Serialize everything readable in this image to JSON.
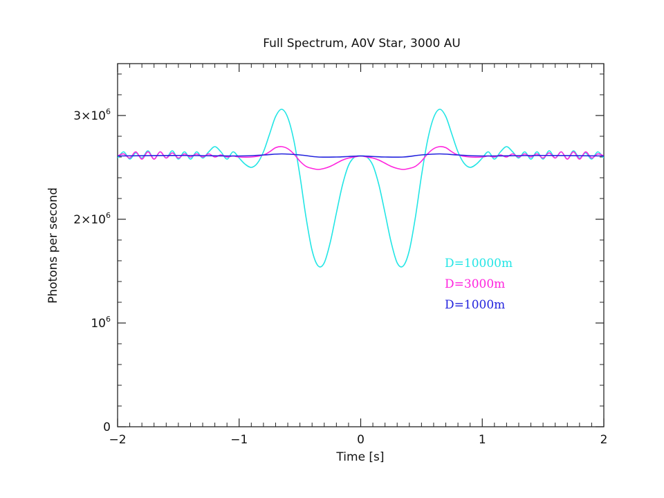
{
  "chart_data": {
    "type": "line",
    "title": "Full Spectrum, A0V Star, 3000 AU",
    "xlabel": "Time [s]",
    "ylabel": "Photons per second",
    "xlim": [
      -2,
      2
    ],
    "ylim": [
      0,
      3500000
    ],
    "x_ticks": [
      {
        "value": -2,
        "label": "−2"
      },
      {
        "value": -1,
        "label": "−1"
      },
      {
        "value": 0,
        "label": "0"
      },
      {
        "value": 1,
        "label": "1"
      },
      {
        "value": 2,
        "label": "2"
      }
    ],
    "y_ticks": [
      {
        "value": 0,
        "label": "0",
        "mantissa": "",
        "exp": ""
      },
      {
        "value": 1000000,
        "label": "10^6",
        "mantissa": "10",
        "exp": "6"
      },
      {
        "value": 2000000,
        "label": "2×10^6",
        "mantissa": "2×10",
        "exp": "6"
      },
      {
        "value": 3000000,
        "label": "3×10^6",
        "mantissa": "3×10",
        "exp": "6"
      }
    ],
    "grid": false,
    "legend_placement": "center-right",
    "series": [
      {
        "name": "D=10000m",
        "color": "#22e5e5",
        "points": [
          [
            -2.0,
            2590000
          ],
          [
            -1.95,
            2650000
          ],
          [
            -1.9,
            2580000
          ],
          [
            -1.85,
            2640000
          ],
          [
            -1.8,
            2590000
          ],
          [
            -1.75,
            2660000
          ],
          [
            -1.7,
            2580000
          ],
          [
            -1.65,
            2650000
          ],
          [
            -1.6,
            2590000
          ],
          [
            -1.55,
            2660000
          ],
          [
            -1.5,
            2580000
          ],
          [
            -1.45,
            2650000
          ],
          [
            -1.4,
            2580000
          ],
          [
            -1.35,
            2650000
          ],
          [
            -1.3,
            2590000
          ],
          [
            -1.25,
            2650000
          ],
          [
            -1.2,
            2700000
          ],
          [
            -1.15,
            2650000
          ],
          [
            -1.1,
            2580000
          ],
          [
            -1.05,
            2650000
          ],
          [
            -1.0,
            2590000
          ],
          [
            -0.95,
            2530000
          ],
          [
            -0.9,
            2500000
          ],
          [
            -0.85,
            2540000
          ],
          [
            -0.8,
            2650000
          ],
          [
            -0.75,
            2820000
          ],
          [
            -0.7,
            2990000
          ],
          [
            -0.65,
            3060000
          ],
          [
            -0.6,
            2980000
          ],
          [
            -0.55,
            2760000
          ],
          [
            -0.5,
            2420000
          ],
          [
            -0.45,
            2020000
          ],
          [
            -0.4,
            1700000
          ],
          [
            -0.35,
            1550000
          ],
          [
            -0.3,
            1580000
          ],
          [
            -0.25,
            1780000
          ],
          [
            -0.2,
            2060000
          ],
          [
            -0.15,
            2330000
          ],
          [
            -0.1,
            2520000
          ],
          [
            -0.05,
            2600000
          ],
          [
            0.0,
            2610000
          ],
          [
            0.05,
            2600000
          ],
          [
            0.1,
            2520000
          ],
          [
            0.15,
            2330000
          ],
          [
            0.2,
            2060000
          ],
          [
            0.25,
            1780000
          ],
          [
            0.3,
            1580000
          ],
          [
            0.35,
            1550000
          ],
          [
            0.4,
            1700000
          ],
          [
            0.45,
            2020000
          ],
          [
            0.5,
            2420000
          ],
          [
            0.55,
            2760000
          ],
          [
            0.6,
            2980000
          ],
          [
            0.65,
            3060000
          ],
          [
            0.7,
            2990000
          ],
          [
            0.75,
            2820000
          ],
          [
            0.8,
            2650000
          ],
          [
            0.85,
            2540000
          ],
          [
            0.9,
            2500000
          ],
          [
            0.95,
            2530000
          ],
          [
            1.0,
            2590000
          ],
          [
            1.05,
            2650000
          ],
          [
            1.1,
            2580000
          ],
          [
            1.15,
            2650000
          ],
          [
            1.2,
            2700000
          ],
          [
            1.25,
            2650000
          ],
          [
            1.3,
            2590000
          ],
          [
            1.35,
            2650000
          ],
          [
            1.4,
            2580000
          ],
          [
            1.45,
            2650000
          ],
          [
            1.5,
            2580000
          ],
          [
            1.55,
            2660000
          ],
          [
            1.6,
            2590000
          ],
          [
            1.65,
            2650000
          ],
          [
            1.7,
            2580000
          ],
          [
            1.75,
            2660000
          ],
          [
            1.8,
            2590000
          ],
          [
            1.85,
            2640000
          ],
          [
            1.9,
            2580000
          ],
          [
            1.95,
            2650000
          ],
          [
            2.0,
            2590000
          ]
        ]
      },
      {
        "name": "D=3000m",
        "color": "#ff22dd",
        "points": [
          [
            -2.0,
            2610000
          ],
          [
            -1.95,
            2630000
          ],
          [
            -1.9,
            2590000
          ],
          [
            -1.85,
            2650000
          ],
          [
            -1.8,
            2580000
          ],
          [
            -1.75,
            2650000
          ],
          [
            -1.7,
            2580000
          ],
          [
            -1.65,
            2650000
          ],
          [
            -1.6,
            2590000
          ],
          [
            -1.55,
            2640000
          ],
          [
            -1.5,
            2590000
          ],
          [
            -1.45,
            2630000
          ],
          [
            -1.4,
            2600000
          ],
          [
            -1.35,
            2630000
          ],
          [
            -1.3,
            2600000
          ],
          [
            -1.25,
            2630000
          ],
          [
            -1.2,
            2600000
          ],
          [
            -1.15,
            2620000
          ],
          [
            -1.1,
            2600000
          ],
          [
            -1.05,
            2610000
          ],
          [
            -1.0,
            2600000
          ],
          [
            -0.9,
            2600000
          ],
          [
            -0.8,
            2620000
          ],
          [
            -0.75,
            2650000
          ],
          [
            -0.7,
            2690000
          ],
          [
            -0.65,
            2700000
          ],
          [
            -0.6,
            2680000
          ],
          [
            -0.55,
            2630000
          ],
          [
            -0.5,
            2560000
          ],
          [
            -0.45,
            2510000
          ],
          [
            -0.4,
            2490000
          ],
          [
            -0.35,
            2480000
          ],
          [
            -0.3,
            2490000
          ],
          [
            -0.25,
            2510000
          ],
          [
            -0.2,
            2540000
          ],
          [
            -0.15,
            2570000
          ],
          [
            -0.1,
            2590000
          ],
          [
            -0.05,
            2600000
          ],
          [
            0.0,
            2610000
          ],
          [
            0.05,
            2600000
          ],
          [
            0.1,
            2590000
          ],
          [
            0.15,
            2570000
          ],
          [
            0.2,
            2540000
          ],
          [
            0.25,
            2510000
          ],
          [
            0.3,
            2490000
          ],
          [
            0.35,
            2480000
          ],
          [
            0.4,
            2490000
          ],
          [
            0.45,
            2510000
          ],
          [
            0.5,
            2560000
          ],
          [
            0.55,
            2630000
          ],
          [
            0.6,
            2680000
          ],
          [
            0.65,
            2700000
          ],
          [
            0.7,
            2690000
          ],
          [
            0.75,
            2650000
          ],
          [
            0.8,
            2620000
          ],
          [
            0.9,
            2600000
          ],
          [
            1.0,
            2600000
          ],
          [
            1.05,
            2610000
          ],
          [
            1.1,
            2600000
          ],
          [
            1.15,
            2620000
          ],
          [
            1.2,
            2600000
          ],
          [
            1.25,
            2630000
          ],
          [
            1.3,
            2600000
          ],
          [
            1.35,
            2630000
          ],
          [
            1.4,
            2600000
          ],
          [
            1.45,
            2630000
          ],
          [
            1.5,
            2590000
          ],
          [
            1.55,
            2640000
          ],
          [
            1.6,
            2590000
          ],
          [
            1.65,
            2650000
          ],
          [
            1.7,
            2580000
          ],
          [
            1.75,
            2650000
          ],
          [
            1.8,
            2580000
          ],
          [
            1.85,
            2650000
          ],
          [
            1.9,
            2590000
          ],
          [
            1.95,
            2630000
          ],
          [
            2.0,
            2610000
          ]
        ]
      },
      {
        "name": "D=1000m",
        "color": "#2222dd",
        "points": [
          [
            -2.0,
            2610000
          ],
          [
            -1.5,
            2615000
          ],
          [
            -1.0,
            2610000
          ],
          [
            -0.8,
            2620000
          ],
          [
            -0.65,
            2630000
          ],
          [
            -0.5,
            2620000
          ],
          [
            -0.35,
            2600000
          ],
          [
            -0.2,
            2600000
          ],
          [
            -0.1,
            2605000
          ],
          [
            0.0,
            2610000
          ],
          [
            0.1,
            2605000
          ],
          [
            0.2,
            2600000
          ],
          [
            0.35,
            2600000
          ],
          [
            0.5,
            2620000
          ],
          [
            0.65,
            2630000
          ],
          [
            0.8,
            2620000
          ],
          [
            1.0,
            2610000
          ],
          [
            1.5,
            2615000
          ],
          [
            2.0,
            2610000
          ]
        ]
      }
    ]
  }
}
